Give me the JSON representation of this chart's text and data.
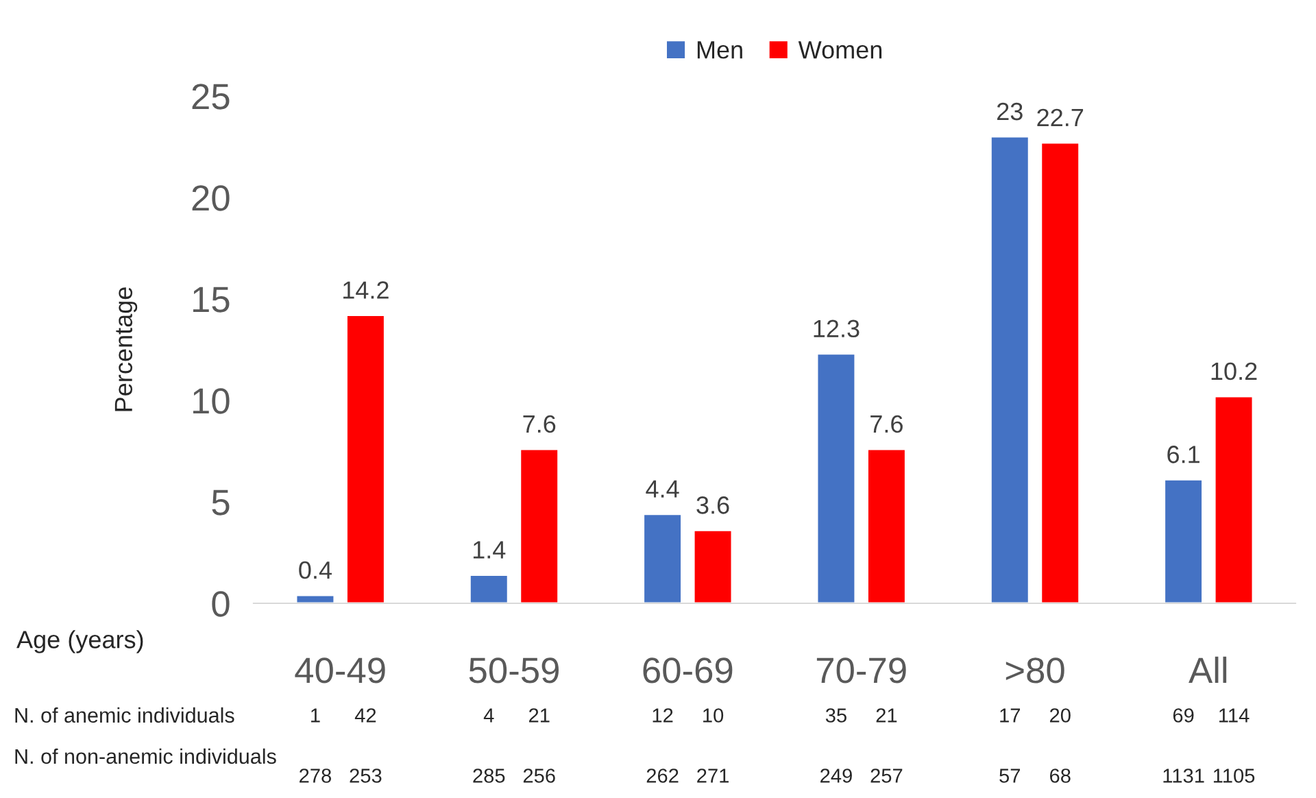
{
  "chart_data": {
    "type": "bar",
    "ylabel": "Percentage",
    "xlabel": "Age (years)",
    "categories": [
      "40-49",
      "50-59",
      "60-69",
      "70-79",
      ">80",
      "All"
    ],
    "series": [
      {
        "name": "Men",
        "color": "#4472c4",
        "values": [
          0.4,
          1.4,
          4.4,
          12.3,
          23,
          6.1
        ]
      },
      {
        "name": "Women",
        "color": "#ff0000",
        "values": [
          14.2,
          7.6,
          3.6,
          7.6,
          22.7,
          10.2
        ]
      }
    ],
    "ylim": [
      0,
      25
    ],
    "yticks": [
      0,
      5,
      10,
      15,
      20,
      25
    ],
    "data_labels": true,
    "grid": false,
    "legend": "top",
    "annotations": [
      "N. of anemic individuals",
      "1",
      "42",
      "4",
      "21",
      "12",
      "10",
      "35",
      "21",
      "17",
      "20",
      "69",
      "114",
      "N. of non-anemic individuals",
      "278",
      "253",
      "285",
      "256",
      "262",
      "271",
      "249",
      "257",
      "57",
      "68",
      "1131",
      "1105"
    ]
  }
}
